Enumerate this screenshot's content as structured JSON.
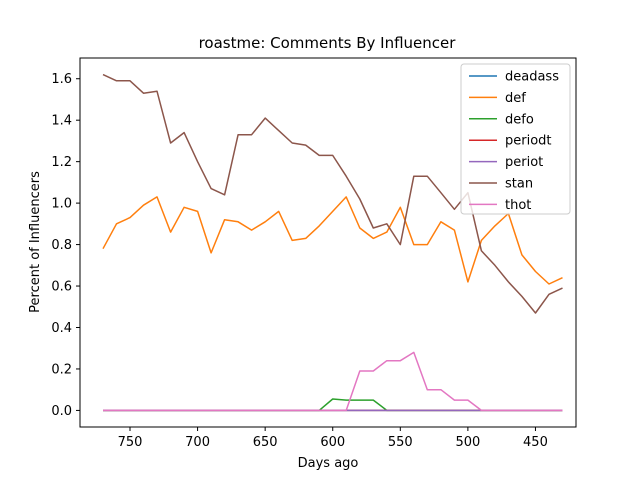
{
  "chart_data": {
    "type": "line",
    "title": "roastme: Comments By Influencer",
    "xlabel": "Days ago",
    "ylabel": "Percent of Influencers",
    "xlim": [
      787,
      420
    ],
    "ylim": [
      -0.08,
      1.7
    ],
    "x_inverted": true,
    "xticks": [
      750,
      700,
      650,
      600,
      550,
      500,
      450
    ],
    "yticks": [
      0.0,
      0.2,
      0.4,
      0.6,
      0.8,
      1.0,
      1.2,
      1.4,
      1.6
    ],
    "ytick_labels": [
      "0.0",
      "0.2",
      "0.4",
      "0.6",
      "0.8",
      "1.0",
      "1.2",
      "1.4",
      "1.6"
    ],
    "legend_position": "top-right",
    "x": [
      770,
      760,
      750,
      740,
      730,
      720,
      710,
      700,
      690,
      680,
      670,
      660,
      650,
      640,
      630,
      620,
      610,
      600,
      590,
      580,
      570,
      560,
      550,
      540,
      530,
      520,
      510,
      500,
      490,
      480,
      470,
      460,
      450,
      440,
      430
    ],
    "series": [
      {
        "name": "deadass",
        "color": "#1f77b4",
        "values": [
          0,
          0,
          0,
          0,
          0,
          0,
          0,
          0,
          0,
          0,
          0,
          0,
          0,
          0,
          0,
          0,
          0,
          0,
          0,
          0,
          0,
          0,
          0,
          0,
          0,
          0,
          0,
          0,
          0,
          0,
          0,
          0,
          0,
          0,
          0
        ]
      },
      {
        "name": "def",
        "color": "#ff7f0e",
        "values": [
          0.78,
          0.9,
          0.93,
          0.99,
          1.03,
          0.86,
          0.98,
          0.96,
          0.76,
          0.92,
          0.91,
          0.87,
          0.91,
          0.96,
          0.82,
          0.83,
          0.89,
          0.96,
          1.03,
          0.88,
          0.83,
          0.86,
          0.98,
          0.8,
          0.8,
          0.91,
          0.87,
          0.62,
          0.82,
          0.89,
          0.95,
          0.75,
          0.67,
          0.61,
          0.64
        ]
      },
      {
        "name": "defo",
        "color": "#2ca02c",
        "values": [
          0,
          0,
          0,
          0,
          0,
          0,
          0,
          0,
          0,
          0,
          0,
          0,
          0,
          0,
          0,
          0,
          0,
          0.055,
          0.05,
          0.05,
          0.05,
          0,
          0,
          0,
          0,
          0,
          0,
          0,
          0,
          0,
          0,
          0,
          0,
          0,
          0
        ]
      },
      {
        "name": "periodt",
        "color": "#d62728",
        "values": [
          0,
          0,
          0,
          0,
          0,
          0,
          0,
          0,
          0,
          0,
          0,
          0,
          0,
          0,
          0,
          0,
          0,
          0,
          0,
          0,
          0,
          0,
          0,
          0,
          0,
          0,
          0,
          0,
          0,
          0,
          0,
          0,
          0,
          0,
          0
        ]
      },
      {
        "name": "periot",
        "color": "#9467bd",
        "values": [
          0,
          0,
          0,
          0,
          0,
          0,
          0,
          0,
          0,
          0,
          0,
          0,
          0,
          0,
          0,
          0,
          0,
          0,
          0,
          0,
          0,
          0,
          0,
          0,
          0,
          0,
          0,
          0,
          0,
          0,
          0,
          0,
          0,
          0,
          0
        ]
      },
      {
        "name": "stan",
        "color": "#8c564b",
        "values": [
          1.62,
          1.59,
          1.59,
          1.53,
          1.54,
          1.29,
          1.34,
          1.2,
          1.07,
          1.04,
          1.33,
          1.33,
          1.41,
          1.35,
          1.29,
          1.28,
          1.23,
          1.23,
          1.13,
          1.02,
          0.88,
          0.9,
          0.8,
          1.13,
          1.13,
          1.05,
          0.97,
          1.05,
          0.77,
          0.7,
          0.62,
          0.55,
          0.47,
          0.56,
          0.59
        ]
      },
      {
        "name": "thot",
        "color": "#e377c2",
        "values": [
          0,
          0,
          0,
          0,
          0,
          0,
          0,
          0,
          0,
          0,
          0,
          0,
          0,
          0,
          0,
          0,
          0,
          0,
          0,
          0.19,
          0.19,
          0.24,
          0.24,
          0.28,
          0.1,
          0.1,
          0.05,
          0.05,
          0,
          0,
          0,
          0,
          0,
          0,
          0
        ]
      }
    ]
  }
}
